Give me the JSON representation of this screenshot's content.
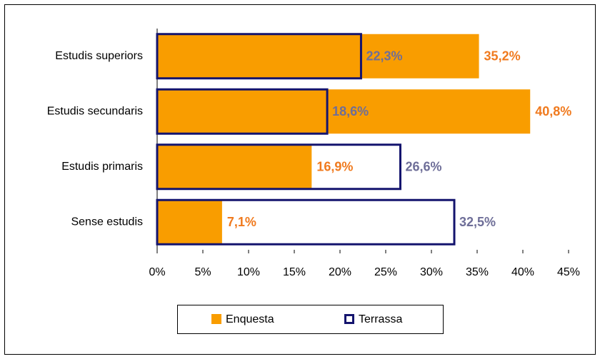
{
  "chart_data": {
    "type": "bar",
    "orientation": "horizontal",
    "overlap": true,
    "categories": [
      "Estudis superiors",
      "Estudis secundaris",
      "Estudis primaris",
      "Sense estudis"
    ],
    "series": [
      {
        "name": "Enquesta",
        "color": "#f99d00",
        "label_color": "#f07a1e",
        "style": "filled",
        "values": [
          35.2,
          40.8,
          16.9,
          7.1
        ],
        "value_labels": [
          "35,2%",
          "40,8%",
          "16,9%",
          "7,1%"
        ]
      },
      {
        "name": "Terrassa",
        "color": "#14146e",
        "label_color": "#6e6e98",
        "style": "outline",
        "values": [
          22.3,
          18.6,
          26.6,
          32.5
        ],
        "value_labels": [
          "22,3%",
          "18,6%",
          "26,6%",
          "32,5%"
        ]
      }
    ],
    "xlim": [
      0,
      45
    ],
    "xticks": [
      {
        "value": 0,
        "label": "0%"
      },
      {
        "value": 5,
        "label": "5%"
      },
      {
        "value": 10,
        "label": "10%"
      },
      {
        "value": 15,
        "label": "15%"
      },
      {
        "value": 20,
        "label": "20%"
      },
      {
        "value": 25,
        "label": "25%"
      },
      {
        "value": 30,
        "label": "30%"
      },
      {
        "value": 35,
        "label": "35%"
      },
      {
        "value": 40,
        "label": "40%"
      },
      {
        "value": 45,
        "label": "45%"
      }
    ],
    "legend": "bottom"
  }
}
